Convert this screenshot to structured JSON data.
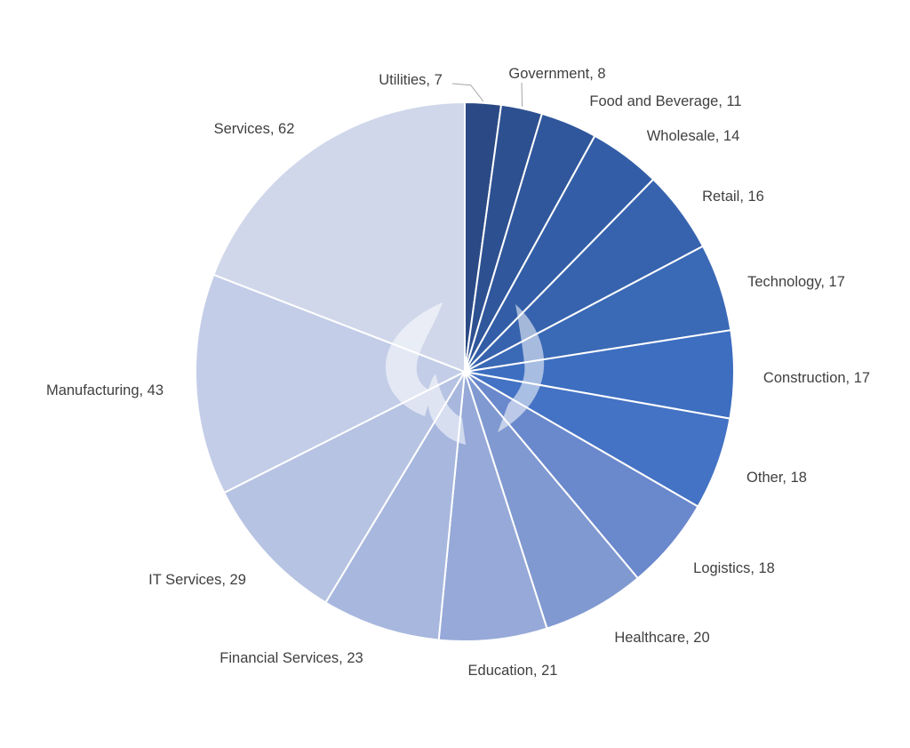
{
  "chart_data": {
    "type": "pie",
    "title": "",
    "legend": "none",
    "start_angle": "12 o'clock, clockwise",
    "categories": [
      "Utilities",
      "Government",
      "Food and Beverage",
      "Wholesale",
      "Retail",
      "Technology",
      "Construction",
      "Other",
      "Logistics",
      "Healthcare",
      "Education",
      "Financial Services",
      "IT Services",
      "Manufacturing",
      "Services"
    ],
    "values": [
      7,
      8,
      11,
      14,
      16,
      17,
      17,
      18,
      18,
      20,
      21,
      23,
      29,
      43,
      62
    ],
    "labels": [
      "Utilities, 7",
      "Government, 8",
      "Food and Beverage, 11",
      "Wholesale, 14",
      "Retail, 16",
      "Technology, 17",
      "Construction, 17",
      "Other, 18",
      "Logistics, 18",
      "Healthcare, 20",
      "Education, 21",
      "Financial Services, 23",
      "IT Services, 29",
      "Manufacturing, 43",
      "Services, 62"
    ],
    "colors": [
      "#2b4a85",
      "#2d5090",
      "#30579c",
      "#335ea7",
      "#3763ae",
      "#3a69b6",
      "#3d6ec0",
      "#4472c4",
      "#6a88cc",
      "#8099d1",
      "#96a9d8",
      "#a7b7de",
      "#b7c3e2",
      "#c3cde8",
      "#d0d7ea"
    ],
    "slice_border_color": "#ffffff"
  }
}
